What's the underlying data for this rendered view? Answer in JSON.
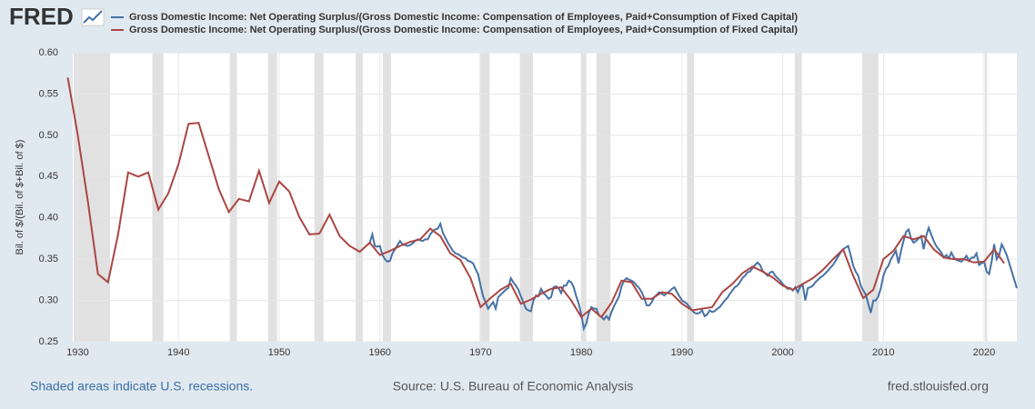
{
  "chart_data": {
    "type": "line",
    "logo": "FRED",
    "ylabel": "Bil. of $/(Bil. of $+Bil. of $)",
    "note": "Shaded areas indicate U.S. recessions.",
    "source": "Source: U.S. Bureau of Economic Analysis",
    "site": "fred.stlouisfed.org",
    "xlim": [
      1929.5,
      2023.25
    ],
    "ylim": [
      0.25,
      0.6
    ],
    "xticks": [
      1930,
      1940,
      1950,
      1960,
      1970,
      1980,
      1990,
      2000,
      2010,
      2020
    ],
    "yticks": [
      {
        "value": 0.25,
        "label": "0.25"
      },
      {
        "value": 0.3,
        "label": "0.30"
      },
      {
        "value": 0.35,
        "label": "0.35"
      },
      {
        "value": 0.4,
        "label": "0.40"
      },
      {
        "value": 0.45,
        "label": "0.45"
      },
      {
        "value": 0.5,
        "label": "0.50"
      },
      {
        "value": 0.55,
        "label": "0.55"
      },
      {
        "value": 0.6,
        "label": "0.60"
      }
    ],
    "grid": true,
    "recessions": [
      [
        1929.6,
        1933.2
      ],
      [
        1937.4,
        1938.5
      ],
      [
        1945.1,
        1945.8
      ],
      [
        1948.9,
        1949.8
      ],
      [
        1953.5,
        1954.4
      ],
      [
        1957.6,
        1958.3
      ],
      [
        1960.3,
        1961.1
      ],
      [
        1969.9,
        1970.9
      ],
      [
        1973.9,
        1975.2
      ],
      [
        1980.0,
        1980.5
      ],
      [
        1981.5,
        1982.9
      ],
      [
        1990.5,
        1991.2
      ],
      [
        2001.2,
        2001.9
      ],
      [
        2007.9,
        2009.5
      ],
      [
        2020.1,
        2020.3
      ]
    ],
    "series": [
      {
        "name": "Gross Domestic Income: Net Operating Surplus/(Gross Domestic Income: Compensation of Employees, Paid+Consumption of Fixed Capital)",
        "color": "#4572a7",
        "x": [
          1959,
          1959.25,
          1959.5,
          1959.75,
          1960,
          1960.25,
          1960.5,
          1960.75,
          1961,
          1961.25,
          1961.5,
          1961.75,
          1962,
          1962.25,
          1962.5,
          1962.75,
          1963,
          1963.25,
          1963.5,
          1963.75,
          1964,
          1964.25,
          1964.5,
          1964.75,
          1965,
          1965.25,
          1965.5,
          1965.75,
          1966,
          1966.25,
          1966.5,
          1966.75,
          1967,
          1967.25,
          1967.5,
          1967.75,
          1968,
          1968.25,
          1968.5,
          1968.75,
          1969,
          1969.25,
          1969.5,
          1969.75,
          1970,
          1970.25,
          1970.5,
          1970.75,
          1971,
          1971.25,
          1971.5,
          1971.75,
          1972,
          1972.25,
          1972.5,
          1972.75,
          1973,
          1973.25,
          1973.5,
          1973.75,
          1974,
          1974.25,
          1974.5,
          1974.75,
          1975,
          1975.25,
          1975.5,
          1975.75,
          1976,
          1976.25,
          1976.5,
          1976.75,
          1977,
          1977.25,
          1977.5,
          1977.75,
          1978,
          1978.25,
          1978.5,
          1978.75,
          1979,
          1979.25,
          1979.5,
          1979.75,
          1980,
          1980.25,
          1980.5,
          1980.75,
          1981,
          1981.25,
          1981.5,
          1981.75,
          1982,
          1982.25,
          1982.5,
          1982.75,
          1983,
          1983.25,
          1983.5,
          1983.75,
          1984,
          1984.25,
          1984.5,
          1984.75,
          1985,
          1985.25,
          1985.5,
          1985.75,
          1986,
          1986.25,
          1986.5,
          1986.75,
          1987,
          1987.25,
          1987.5,
          1987.75,
          1988,
          1988.25,
          1988.5,
          1988.75,
          1989,
          1989.25,
          1989.5,
          1989.75,
          1990,
          1990.25,
          1990.5,
          1990.75,
          1991,
          1991.25,
          1991.5,
          1991.75,
          1992,
          1992.25,
          1992.5,
          1992.75,
          1993,
          1993.25,
          1993.5,
          1993.75,
          1994,
          1994.25,
          1994.5,
          1994.75,
          1995,
          1995.25,
          1995.5,
          1995.75,
          1996,
          1996.25,
          1996.5,
          1996.75,
          1997,
          1997.25,
          1997.5,
          1997.75,
          1998,
          1998.25,
          1998.5,
          1998.75,
          1999,
          1999.25,
          1999.5,
          1999.75,
          2000,
          2000.25,
          2000.5,
          2000.75,
          2001,
          2001.25,
          2001.5,
          2001.75,
          2002,
          2002.25,
          2002.5,
          2002.75,
          2003,
          2003.25,
          2003.5,
          2003.75,
          2004,
          2004.25,
          2004.5,
          2004.75,
          2005,
          2005.25,
          2005.5,
          2005.75,
          2006,
          2006.25,
          2006.5,
          2006.75,
          2007,
          2007.25,
          2007.5,
          2007.75,
          2008,
          2008.25,
          2008.5,
          2008.75,
          2009,
          2009.25,
          2009.5,
          2009.75,
          2010,
          2010.25,
          2010.5,
          2010.75,
          2011,
          2011.25,
          2011.5,
          2011.75,
          2012,
          2012.25,
          2012.5,
          2012.75,
          2013,
          2013.25,
          2013.5,
          2013.75,
          2014,
          2014.25,
          2014.5,
          2014.75,
          2015,
          2015.25,
          2015.5,
          2015.75,
          2016,
          2016.25,
          2016.5,
          2016.75,
          2017,
          2017.25,
          2017.5,
          2017.75,
          2018,
          2018.25,
          2018.5,
          2018.75,
          2019,
          2019.25,
          2019.5,
          2019.75,
          2020,
          2020.25,
          2020.5,
          2020.75,
          2021,
          2021.25,
          2021.5,
          2021.75,
          2022,
          2022.25,
          2022.5,
          2022.75,
          2023,
          2023.25
        ],
        "values": [
          0.37,
          0.38,
          0.366,
          0.365,
          0.366,
          0.355,
          0.35,
          0.347,
          0.348,
          0.357,
          0.362,
          0.367,
          0.372,
          0.368,
          0.367,
          0.366,
          0.367,
          0.369,
          0.372,
          0.374,
          0.373,
          0.372,
          0.374,
          0.374,
          0.38,
          0.384,
          0.386,
          0.387,
          0.393,
          0.382,
          0.376,
          0.37,
          0.365,
          0.36,
          0.357,
          0.356,
          0.354,
          0.352,
          0.351,
          0.348,
          0.347,
          0.345,
          0.338,
          0.332,
          0.318,
          0.305,
          0.298,
          0.29,
          0.294,
          0.298,
          0.29,
          0.304,
          0.307,
          0.31,
          0.313,
          0.315,
          0.327,
          0.322,
          0.318,
          0.313,
          0.305,
          0.298,
          0.29,
          0.288,
          0.287,
          0.3,
          0.306,
          0.305,
          0.314,
          0.309,
          0.306,
          0.302,
          0.304,
          0.316,
          0.317,
          0.315,
          0.309,
          0.318,
          0.318,
          0.324,
          0.322,
          0.316,
          0.305,
          0.296,
          0.283,
          0.266,
          0.272,
          0.285,
          0.292,
          0.29,
          0.29,
          0.282,
          0.28,
          0.277,
          0.281,
          0.277,
          0.286,
          0.293,
          0.299,
          0.305,
          0.317,
          0.324,
          0.327,
          0.325,
          0.324,
          0.322,
          0.318,
          0.315,
          0.31,
          0.303,
          0.294,
          0.294,
          0.298,
          0.304,
          0.307,
          0.31,
          0.308,
          0.306,
          0.309,
          0.311,
          0.314,
          0.316,
          0.31,
          0.305,
          0.3,
          0.298,
          0.296,
          0.292,
          0.288,
          0.285,
          0.284,
          0.285,
          0.288,
          0.281,
          0.283,
          0.288,
          0.286,
          0.287,
          0.29,
          0.292,
          0.296,
          0.3,
          0.303,
          0.308,
          0.312,
          0.316,
          0.318,
          0.322,
          0.327,
          0.33,
          0.334,
          0.335,
          0.339,
          0.343,
          0.346,
          0.343,
          0.336,
          0.333,
          0.33,
          0.334,
          0.335,
          0.33,
          0.327,
          0.324,
          0.32,
          0.317,
          0.314,
          0.315,
          0.312,
          0.316,
          0.31,
          0.317,
          0.318,
          0.3,
          0.315,
          0.316,
          0.318,
          0.322,
          0.325,
          0.328,
          0.33,
          0.333,
          0.336,
          0.34,
          0.343,
          0.348,
          0.353,
          0.358,
          0.362,
          0.364,
          0.366,
          0.355,
          0.342,
          0.335,
          0.33,
          0.318,
          0.312,
          0.307,
          0.296,
          0.285,
          0.3,
          0.3,
          0.305,
          0.315,
          0.33,
          0.338,
          0.342,
          0.35,
          0.355,
          0.36,
          0.345,
          0.36,
          0.372,
          0.383,
          0.386,
          0.375,
          0.37,
          0.372,
          0.375,
          0.378,
          0.362,
          0.378,
          0.388,
          0.38,
          0.372,
          0.366,
          0.362,
          0.358,
          0.352,
          0.355,
          0.351,
          0.358,
          0.352,
          0.349,
          0.348,
          0.347,
          0.35,
          0.354,
          0.348,
          0.352,
          0.352,
          0.357,
          0.343,
          0.345,
          0.347,
          0.335,
          0.332,
          0.347,
          0.368,
          0.35,
          0.355,
          0.368,
          0.362,
          0.355,
          0.345,
          0.335,
          0.325,
          0.315
        ]
      },
      {
        "name": "Gross Domestic Income: Net Operating Surplus/(Gross Domestic Income: Compensation of Employees, Paid+Consumption of Fixed Capital)",
        "color": "#aa4643",
        "x": [
          1929,
          1930,
          1931,
          1932,
          1933,
          1934,
          1935,
          1936,
          1937,
          1938,
          1939,
          1940,
          1941,
          1942,
          1943,
          1944,
          1945,
          1946,
          1947,
          1948,
          1949,
          1950,
          1951,
          1952,
          1953,
          1954,
          1955,
          1956,
          1957,
          1958,
          1959,
          1960,
          1961,
          1962,
          1963,
          1964,
          1965,
          1966,
          1967,
          1968,
          1969,
          1970,
          1971,
          1972,
          1973,
          1974,
          1975,
          1976,
          1977,
          1978,
          1979,
          1980,
          1981,
          1982,
          1983,
          1984,
          1985,
          1986,
          1987,
          1988,
          1989,
          1990,
          1991,
          1992,
          1993,
          1994,
          1995,
          1996,
          1997,
          1998,
          1999,
          2000,
          2001,
          2002,
          2003,
          2004,
          2005,
          2006,
          2007,
          2008,
          2009,
          2010,
          2011,
          2012,
          2013,
          2014,
          2015,
          2016,
          2017,
          2018,
          2019,
          2020,
          2021,
          2022
        ],
        "values": [
          0.57,
          0.5,
          0.42,
          0.332,
          0.322,
          0.38,
          0.455,
          0.45,
          0.455,
          0.41,
          0.43,
          0.465,
          0.514,
          0.515,
          0.475,
          0.435,
          0.407,
          0.423,
          0.42,
          0.457,
          0.418,
          0.444,
          0.432,
          0.401,
          0.38,
          0.381,
          0.404,
          0.378,
          0.366,
          0.359,
          0.37,
          0.355,
          0.36,
          0.366,
          0.371,
          0.374,
          0.387,
          0.378,
          0.357,
          0.349,
          0.327,
          0.292,
          0.303,
          0.313,
          0.32,
          0.296,
          0.301,
          0.308,
          0.314,
          0.316,
          0.3,
          0.28,
          0.29,
          0.28,
          0.297,
          0.324,
          0.322,
          0.302,
          0.302,
          0.31,
          0.308,
          0.296,
          0.288,
          0.29,
          0.292,
          0.31,
          0.32,
          0.333,
          0.341,
          0.335,
          0.328,
          0.318,
          0.313,
          0.32,
          0.327,
          0.337,
          0.35,
          0.362,
          0.33,
          0.303,
          0.313,
          0.35,
          0.36,
          0.378,
          0.374,
          0.378,
          0.362,
          0.352,
          0.35,
          0.35,
          0.346,
          0.347,
          0.362,
          0.345
        ]
      }
    ]
  }
}
